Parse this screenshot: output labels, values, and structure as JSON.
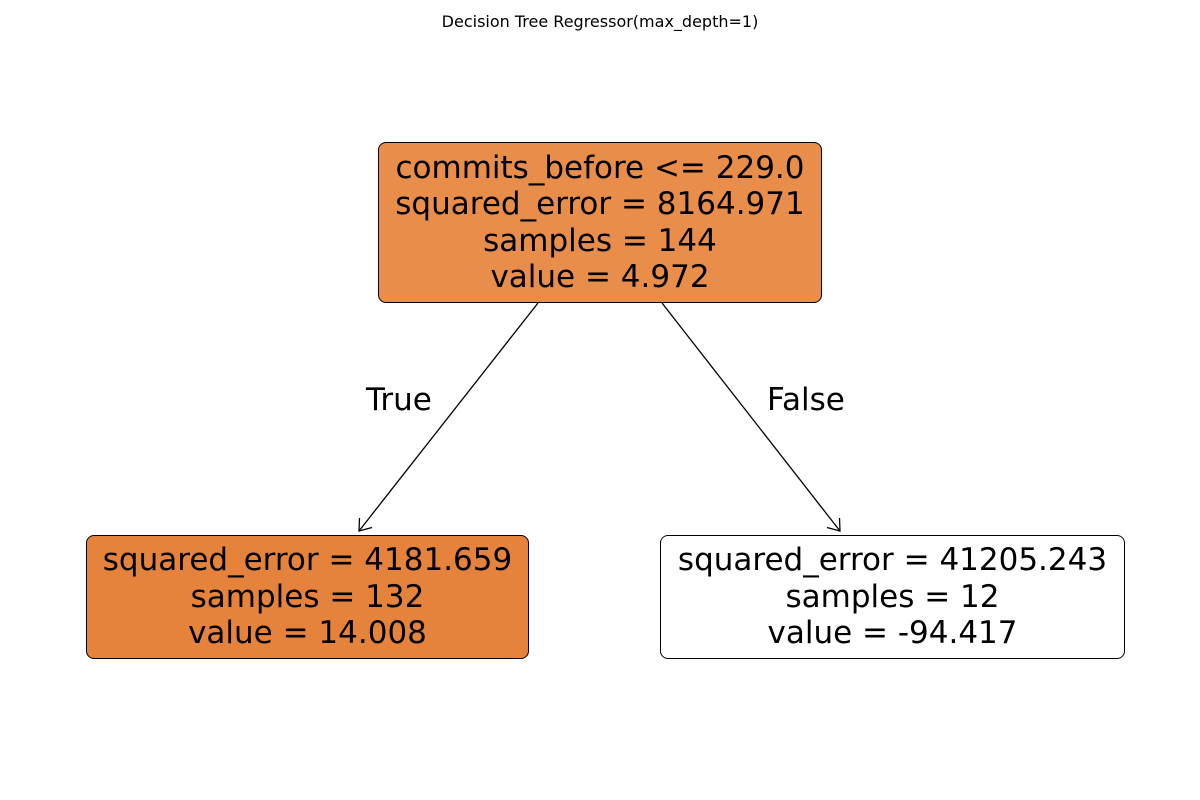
{
  "title": "Decision Tree Regressor(max_depth=1)",
  "colors": {
    "root_fill": "#e98d4b",
    "left_fill": "#e5823b",
    "right_fill": "#ffffff",
    "edge_stroke": "#000000"
  },
  "tree": {
    "root": {
      "split": "commits_before <= 229.0",
      "squared_error": "squared_error = 8164.971",
      "samples": "samples = 144",
      "value": "value = 4.972"
    },
    "left": {
      "squared_error": "squared_error = 4181.659",
      "samples": "samples = 132",
      "value": "value = 14.008"
    },
    "right": {
      "squared_error": "squared_error = 41205.243",
      "samples": "samples = 12",
      "value": "value = -94.417"
    },
    "edges": {
      "true_label": "True",
      "false_label": "False"
    }
  }
}
